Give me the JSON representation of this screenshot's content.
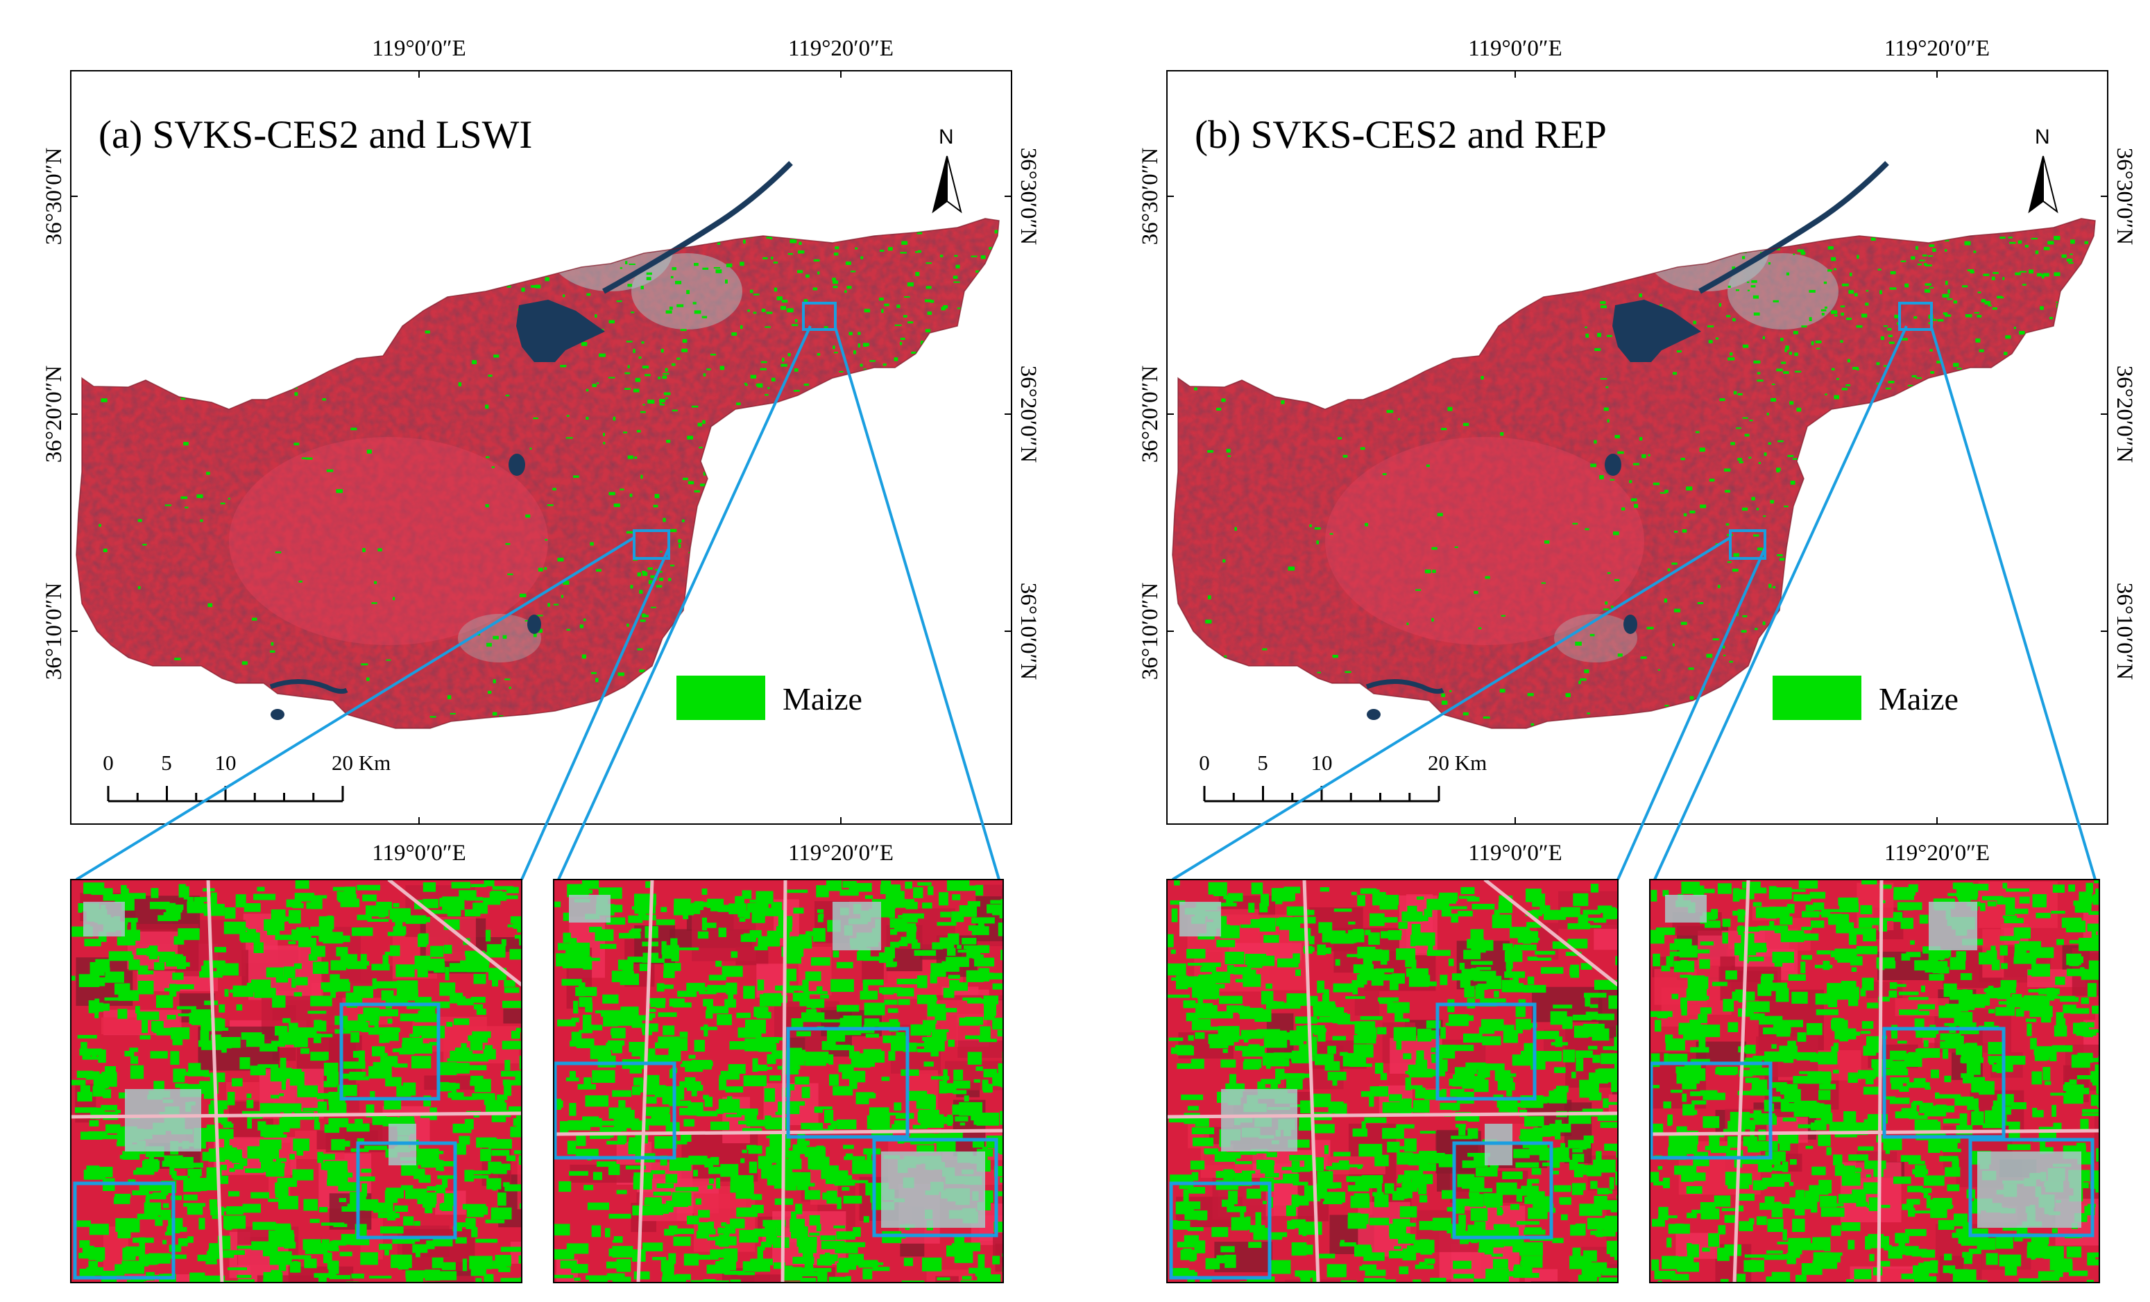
{
  "panels": [
    {
      "title": "(a) SVKS-CES2 and LSWI",
      "lon_labels": [
        "119°0′0″E",
        "119°20′0″E"
      ],
      "lat_labels": [
        "36°30′0″N",
        "36°20′0″N",
        "36°10′0″N"
      ],
      "north_label": "N",
      "legend_label": "Maize",
      "scale_labels": [
        "0",
        "5",
        "10",
        "20 Km"
      ]
    },
    {
      "title": "(b) SVKS-CES2 and REP",
      "lon_labels": [
        "119°0′0″E",
        "119°20′0″E"
      ],
      "lat_labels": [
        "36°30′0″N",
        "36°20′0″N",
        "36°10′0″N"
      ],
      "north_label": "N",
      "legend_label": "Maize",
      "scale_labels": [
        "0",
        "5",
        "10",
        "20 Km"
      ]
    }
  ],
  "colors": {
    "maize": "#00e000",
    "vegetation": "#d8203c",
    "water": "#1a3a5c",
    "urban": "#a8c8c8",
    "highlight": "#1a9ee0"
  }
}
